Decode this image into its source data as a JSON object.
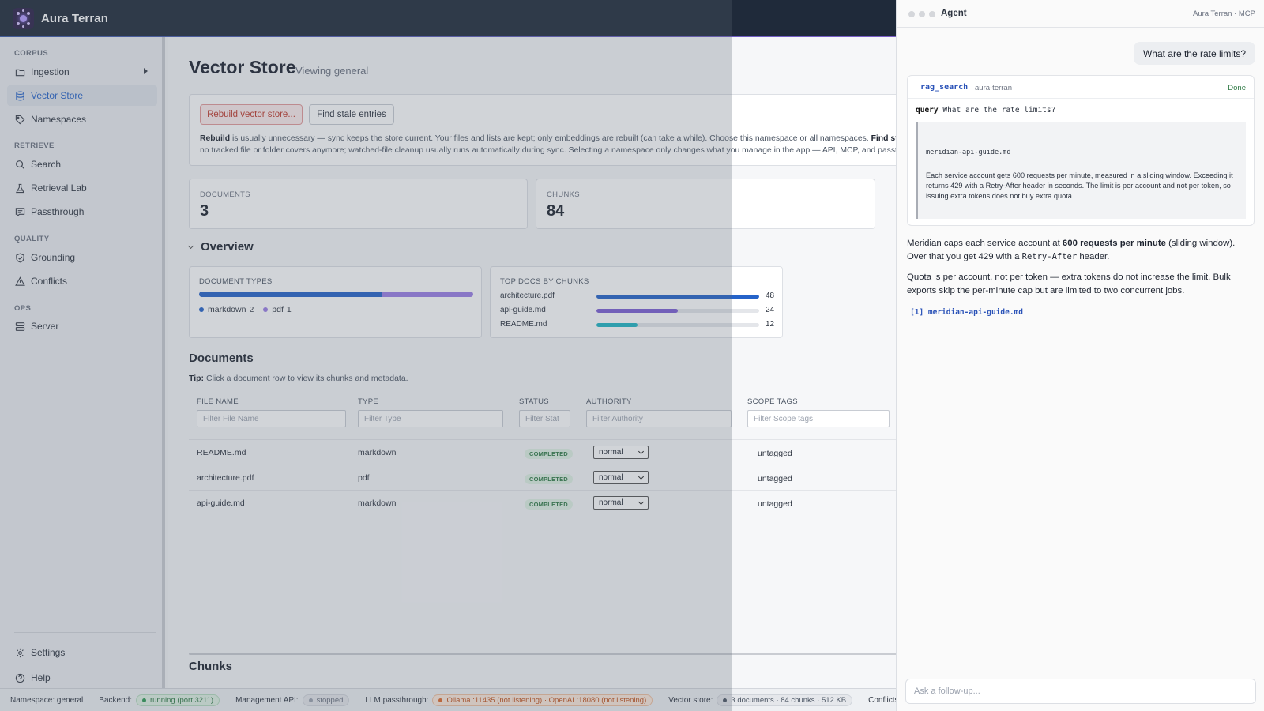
{
  "app": {
    "name": "Aura Terran"
  },
  "sidebar": {
    "sections": [
      {
        "label": "CORPUS"
      },
      {
        "label": "RETRIEVE"
      },
      {
        "label": "QUALITY"
      },
      {
        "label": "OPS"
      }
    ],
    "items": [
      {
        "label": "Ingestion",
        "icon": "folder-icon"
      },
      {
        "label": "Vector Store",
        "icon": "database-icon",
        "active": true
      },
      {
        "label": "Namespaces",
        "icon": "tag-icon"
      },
      {
        "label": "Search",
        "icon": "search-icon"
      },
      {
        "label": "Retrieval Lab",
        "icon": "flask-icon"
      },
      {
        "label": "Passthrough",
        "icon": "message-icon"
      },
      {
        "label": "Grounding",
        "icon": "shield-check-icon"
      },
      {
        "label": "Conflicts",
        "icon": "warning-icon"
      },
      {
        "label": "Server",
        "icon": "server-icon"
      }
    ],
    "footer": [
      {
        "label": "Settings",
        "icon": "gear-icon"
      },
      {
        "label": "Help",
        "icon": "help-icon"
      }
    ]
  },
  "main": {
    "title": "Vector Store",
    "subtitle": "Viewing general",
    "actions": {
      "rebuild": "Rebuild vector store...",
      "stale": "Find stale entries",
      "help_rebuild_label": "Rebuild",
      "help_line1": " is usually unnecessary — sync keeps the store current. Your files and lists are kept; only embeddings are rebuilt (can take a while). Choose this namespace or all namespaces. ",
      "help_stale_label": "Find stale entries",
      "help_line1_tail": " a",
      "help_line2": "no tracked file or folder covers anymore; watched-file cleanup usually runs automatically during sync. Selecting a namespace only changes what you manage in the app — API, MCP, and passthrough st"
    },
    "stats": {
      "documents_label": "DOCUMENTS",
      "documents_value": "3",
      "chunks_label": "CHUNKS",
      "chunks_value": "84"
    },
    "overview": {
      "title": "Overview",
      "doc_types": {
        "label": "DOCUMENT TYPES",
        "items": [
          {
            "name": "markdown",
            "count": "2",
            "value": 2,
            "color": "#2563c9"
          },
          {
            "name": "pdf",
            "count": "1",
            "value": 1,
            "color": "#9b7ee6"
          }
        ]
      },
      "top_docs": {
        "label": "TOP DOCS BY CHUNKS",
        "max": 48,
        "items": [
          {
            "name": "architecture.pdf",
            "value": 48,
            "label": "48",
            "color": "#2563c9"
          },
          {
            "name": "api-guide.md",
            "value": 24,
            "label": "24",
            "color": "#7c5fd4"
          },
          {
            "name": "README.md",
            "value": 12,
            "label": "12",
            "color": "#1fb5c4"
          }
        ]
      }
    },
    "documents": {
      "title": "Documents",
      "tip_label": "Tip:",
      "tip_text": " Click a document row to view its chunks and metadata.",
      "columns": [
        "FILE NAME",
        "TYPE",
        "STATUS",
        "AUTHORITY",
        "SCOPE TAGS"
      ],
      "filters": [
        "Filter File Name",
        "Filter Type",
        "Filter Stat",
        "Filter Authority",
        "Filter Scope tags"
      ],
      "rows": [
        {
          "file": "README.md",
          "type": "markdown",
          "status": "COMPLETED",
          "authority": "normal",
          "tags": "untagged"
        },
        {
          "file": "architecture.pdf",
          "type": "pdf",
          "status": "COMPLETED",
          "authority": "normal",
          "tags": "untagged"
        },
        {
          "file": "api-guide.md",
          "type": "markdown",
          "status": "COMPLETED",
          "authority": "normal",
          "tags": "untagged"
        }
      ]
    },
    "chunks_title": "Chunks"
  },
  "statusbar": {
    "namespace": "Namespace: general",
    "backend_label": "Backend:",
    "backend_value": "running (port 3211)",
    "mgmt_label": "Management API:",
    "mgmt_value": "stopped",
    "llm_label": "LLM passthrough:",
    "llm_value": "Ollama :11435 (not listening) · OpenAI :18080 (not listening)",
    "vector_label": "Vector store:",
    "vector_value": "3 documents · 84 chunks · 512 KB",
    "conflicts_label": "Conflicts:"
  },
  "agent": {
    "title": "Agent",
    "meta": "Aura Terran · MCP",
    "user_message": "What are the rate limits?",
    "tool": {
      "name": "rag_search",
      "server": "aura-terran",
      "status": "Done",
      "query_label": "query",
      "query_value": "What are the rate limits?",
      "result_file": "meridian-api-guide.md",
      "result_text": "Each service account gets 600 requests per minute, measured in a sliding window. Exceeding it returns 429 with a Retry-After header in seconds. The limit is per account and not per token, so issuing extra tokens does not buy extra quota."
    },
    "answer1_pre": "Meridian caps each service account at ",
    "answer1_bold": "600 requests per minute",
    "answer1_mid": " (sliding window). Over that you get 429 with a ",
    "answer1_code": "Retry-After",
    "answer1_post": " header.",
    "answer2": "Quota is per account, not per token — extra tokens do not increase the limit. Bulk exports skip the per-minute cap but are limited to two concurrent jobs.",
    "citation": "[1] meridian-api-guide.md",
    "followup_placeholder": "Ask a follow-up..."
  }
}
